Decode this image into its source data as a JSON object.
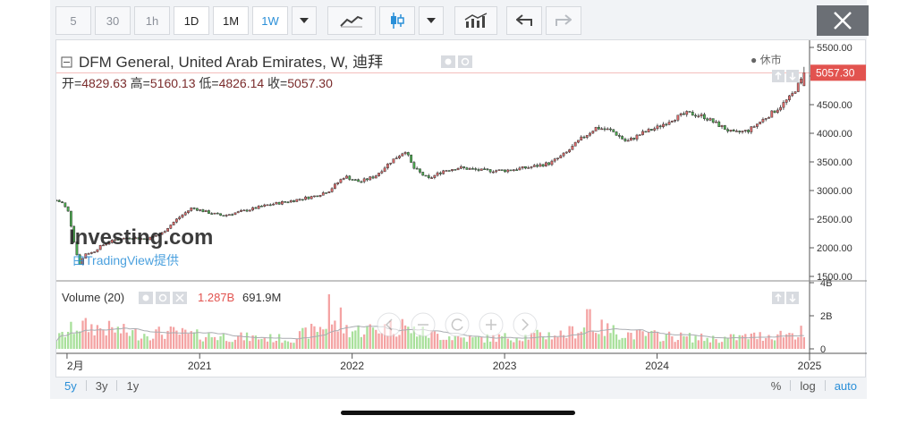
{
  "toolbar": {
    "intervals": [
      "5",
      "30",
      "1h",
      "1D",
      "1M",
      "1W"
    ],
    "active_interval": "1W",
    "chart_type_icon": "line-chart-icon",
    "candles_icon": "candlestick-icon",
    "indicators_icon": "indicators-icon",
    "undo_icon": "undo-arrow-icon",
    "redo_icon": "redo-arrow-icon",
    "close_icon": "close-icon"
  },
  "legend": {
    "title": "DFM General, United Arab Emirates, W, 迪拜",
    "market_status": "● 休市",
    "ohlc": [
      {
        "label": "开=",
        "value": "4829.63"
      },
      {
        "label": "高=",
        "value": "5160.13"
      },
      {
        "label": "低=",
        "value": "4826.14"
      },
      {
        "label": "收=",
        "value": "5057.30"
      }
    ]
  },
  "watermark": {
    "logo": "Investing.com",
    "provider": "由TradingView提供"
  },
  "volume_legend": {
    "title": "Volume (20)",
    "value1": "1.287B",
    "value2": "691.9M"
  },
  "bottom": {
    "ranges": [
      "5y",
      "3y",
      "1y"
    ],
    "active_range": "5y",
    "modes": [
      "%",
      "log",
      "auto"
    ]
  },
  "colors": {
    "up": "#e06b6b",
    "down": "#4caf50",
    "vol_up": "#f4a3a3",
    "vol_down": "#a8e09a",
    "accent": "#2a8fd8",
    "last_price": "#e2534f"
  },
  "chart_data": {
    "type": "candlestick",
    "interval": "W",
    "price_axis": {
      "ticks": [
        1500,
        2000,
        2500,
        3000,
        3500,
        4000,
        4500,
        5000,
        5500
      ],
      "tick_labels": [
        "1500.00",
        "2000.00",
        "2500.00",
        "3000.00",
        "3500.00",
        "4000.00",
        "4500.00",
        "5000.00",
        "5500.00"
      ],
      "last_price_label": "5057.30"
    },
    "volume_axis": {
      "ticks": [
        0,
        2,
        4
      ],
      "tick_labels": [
        "0",
        "2B",
        "4B"
      ],
      "unit": "B"
    },
    "time_axis": {
      "tick_labels": [
        "2月",
        "2021",
        "2022",
        "2023",
        "2024",
        "2025"
      ],
      "ticks": [
        2020.13,
        2021.0,
        2022.0,
        2023.0,
        2024.0,
        2025.0
      ]
    },
    "x_range": [
      2020.06,
      2025.0
    ],
    "close_path": [
      [
        2020.06,
        2830
      ],
      [
        2020.1,
        2780
      ],
      [
        2020.14,
        2620
      ],
      [
        2020.18,
        2050
      ],
      [
        2020.21,
        1700
      ],
      [
        2020.25,
        1900
      ],
      [
        2020.3,
        1920
      ],
      [
        2020.35,
        2030
      ],
      [
        2020.45,
        2150
      ],
      [
        2020.55,
        2180
      ],
      [
        2020.65,
        2150
      ],
      [
        2020.75,
        2250
      ],
      [
        2020.85,
        2500
      ],
      [
        2020.95,
        2700
      ],
      [
        2021.05,
        2620
      ],
      [
        2021.15,
        2560
      ],
      [
        2021.3,
        2650
      ],
      [
        2021.45,
        2750
      ],
      [
        2021.6,
        2820
      ],
      [
        2021.75,
        2900
      ],
      [
        2021.85,
        3000
      ],
      [
        2021.95,
        3250
      ],
      [
        2022.05,
        3150
      ],
      [
        2022.15,
        3250
      ],
      [
        2022.25,
        3500
      ],
      [
        2022.35,
        3700
      ],
      [
        2022.4,
        3400
      ],
      [
        2022.5,
        3200
      ],
      [
        2022.6,
        3350
      ],
      [
        2022.7,
        3400
      ],
      [
        2022.85,
        3350
      ],
      [
        2023.0,
        3350
      ],
      [
        2023.15,
        3400
      ],
      [
        2023.3,
        3480
      ],
      [
        2023.4,
        3650
      ],
      [
        2023.5,
        3900
      ],
      [
        2023.6,
        4100
      ],
      [
        2023.7,
        4050
      ],
      [
        2023.8,
        3850
      ],
      [
        2023.9,
        4000
      ],
      [
        2024.0,
        4100
      ],
      [
        2024.1,
        4250
      ],
      [
        2024.2,
        4350
      ],
      [
        2024.3,
        4300
      ],
      [
        2024.4,
        4150
      ],
      [
        2024.5,
        4000
      ],
      [
        2024.6,
        4050
      ],
      [
        2024.7,
        4250
      ],
      [
        2024.8,
        4450
      ],
      [
        2024.88,
        4650
      ],
      [
        2024.95,
        4950
      ],
      [
        2024.98,
        5057.3
      ]
    ],
    "volume_profile": [
      [
        2020.06,
        0.6
      ],
      [
        2020.2,
        1.4
      ],
      [
        2020.4,
        1.2
      ],
      [
        2020.6,
        0.9
      ],
      [
        2020.8,
        1.0
      ],
      [
        2021.0,
        0.8
      ],
      [
        2021.3,
        0.7
      ],
      [
        2021.6,
        0.6
      ],
      [
        2021.85,
        1.5
      ],
      [
        2022.0,
        1.1
      ],
      [
        2022.3,
        1.3
      ],
      [
        2022.5,
        0.9
      ],
      [
        2022.8,
        0.6
      ],
      [
        2023.0,
        0.7
      ],
      [
        2023.4,
        0.9
      ],
      [
        2023.55,
        1.4
      ],
      [
        2023.8,
        0.9
      ],
      [
        2024.0,
        0.8
      ],
      [
        2024.4,
        0.6
      ],
      [
        2024.7,
        0.8
      ],
      [
        2024.98,
        1.0
      ]
    ],
    "volume_spikes": [
      [
        2021.85,
        3.3
      ],
      [
        2021.92,
        2.5
      ],
      [
        2023.55,
        2.4
      ],
      [
        2022.33,
        1.8
      ],
      [
        2024.95,
        1.4
      ]
    ],
    "ma_volume_period": 20,
    "last_bar": {
      "open": 4829.63,
      "high": 5160.13,
      "low": 4826.14,
      "close": 5057.3
    }
  }
}
